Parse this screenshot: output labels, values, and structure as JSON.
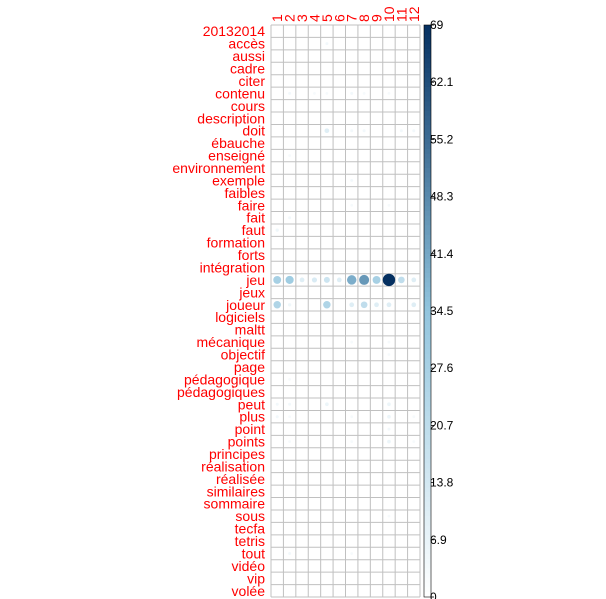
{
  "chart_data": {
    "type": "heatmap",
    "title": "",
    "xlabel": "",
    "ylabel": "",
    "columns": [
      "1",
      "2",
      "3",
      "4",
      "5",
      "6",
      "7",
      "8",
      "9",
      "10",
      "11",
      "12"
    ],
    "rows": [
      "20132014",
      "accès",
      "aussi",
      "cadre",
      "citer",
      "contenu",
      "cours",
      "description",
      "doit",
      "ébauche",
      "enseigné",
      "environnement",
      "exemple",
      "faibles",
      "faire",
      "fait",
      "faut",
      "formation",
      "forts",
      "intégration",
      "jeu",
      "jeux",
      "joueur",
      "logiciels",
      "maltt",
      "mécanique",
      "objectif",
      "page",
      "pédagogique",
      "pédagogiques",
      "peut",
      "plus",
      "point",
      "points",
      "principes",
      "réalisation",
      "réalisée",
      "similaires",
      "sommaire",
      "sous",
      "tecfa",
      "tetris",
      "tout",
      "vidéo",
      "vip",
      "volée"
    ],
    "cells": [
      {
        "row": "accès",
        "col": "5",
        "value": 4
      },
      {
        "row": "contenu",
        "col": "2",
        "value": 4
      },
      {
        "row": "contenu",
        "col": "4",
        "value": 3
      },
      {
        "row": "contenu",
        "col": "5",
        "value": 3
      },
      {
        "row": "contenu",
        "col": "7",
        "value": 4
      },
      {
        "row": "contenu",
        "col": "8",
        "value": 3
      },
      {
        "row": "contenu",
        "col": "10",
        "value": 3
      },
      {
        "row": "doit",
        "col": "5",
        "value": 10
      },
      {
        "row": "doit",
        "col": "7",
        "value": 4
      },
      {
        "row": "doit",
        "col": "8",
        "value": 4
      },
      {
        "row": "doit",
        "col": "11",
        "value": 4
      },
      {
        "row": "doit",
        "col": "12",
        "value": 4
      },
      {
        "row": "enseigné",
        "col": "2",
        "value": 3
      },
      {
        "row": "exemple",
        "col": "7",
        "value": 4
      },
      {
        "row": "faire",
        "col": "7",
        "value": 3
      },
      {
        "row": "faire",
        "col": "10",
        "value": 3
      },
      {
        "row": "fait",
        "col": "2",
        "value": 4
      },
      {
        "row": "faut",
        "col": "1",
        "value": 5
      },
      {
        "row": "jeu",
        "col": "1",
        "value": 28
      },
      {
        "row": "jeu",
        "col": "2",
        "value": 30
      },
      {
        "row": "jeu",
        "col": "3",
        "value": 10
      },
      {
        "row": "jeu",
        "col": "4",
        "value": 12
      },
      {
        "row": "jeu",
        "col": "5",
        "value": 16
      },
      {
        "row": "jeu",
        "col": "6",
        "value": 10
      },
      {
        "row": "jeu",
        "col": "7",
        "value": 40
      },
      {
        "row": "jeu",
        "col": "8",
        "value": 45
      },
      {
        "row": "jeu",
        "col": "9",
        "value": 28
      },
      {
        "row": "jeu",
        "col": "10",
        "value": 69
      },
      {
        "row": "jeu",
        "col": "11",
        "value": 20
      },
      {
        "row": "jeu",
        "col": "12",
        "value": 10
      },
      {
        "row": "joueur",
        "col": "1",
        "value": 25
      },
      {
        "row": "joueur",
        "col": "2",
        "value": 5
      },
      {
        "row": "joueur",
        "col": "5",
        "value": 25
      },
      {
        "row": "joueur",
        "col": "7",
        "value": 10
      },
      {
        "row": "joueur",
        "col": "8",
        "value": 20
      },
      {
        "row": "joueur",
        "col": "9",
        "value": 10
      },
      {
        "row": "joueur",
        "col": "10",
        "value": 10
      },
      {
        "row": "joueur",
        "col": "12",
        "value": 10
      },
      {
        "row": "mécanique",
        "col": "7",
        "value": 3
      },
      {
        "row": "mécanique",
        "col": "10",
        "value": 3
      },
      {
        "row": "objectif",
        "col": "10",
        "value": 3
      },
      {
        "row": "pédagogique",
        "col": "2",
        "value": 3
      },
      {
        "row": "peut",
        "col": "1",
        "value": 4
      },
      {
        "row": "peut",
        "col": "2",
        "value": 4
      },
      {
        "row": "peut",
        "col": "5",
        "value": 6
      },
      {
        "row": "peut",
        "col": "10",
        "value": 6
      },
      {
        "row": "plus",
        "col": "1",
        "value": 4
      },
      {
        "row": "plus",
        "col": "2",
        "value": 3
      },
      {
        "row": "plus",
        "col": "7",
        "value": 3
      },
      {
        "row": "plus",
        "col": "10",
        "value": 6
      },
      {
        "row": "plus",
        "col": "12",
        "value": 3
      },
      {
        "row": "point",
        "col": "10",
        "value": 4
      },
      {
        "row": "points",
        "col": "2",
        "value": 3
      },
      {
        "row": "points",
        "col": "7",
        "value": 3
      },
      {
        "row": "points",
        "col": "10",
        "value": 6
      },
      {
        "row": "points",
        "col": "12",
        "value": 3
      },
      {
        "row": "sous",
        "col": "10",
        "value": 3
      },
      {
        "row": "tout",
        "col": "2",
        "value": 4
      },
      {
        "row": "tout",
        "col": "7",
        "value": 3
      }
    ],
    "color_scale": {
      "min": 0,
      "max": 69,
      "ticks": [
        "0",
        "6.9",
        "13.8",
        "20.7",
        "27.6",
        "34.5",
        "41.4",
        "48.3",
        "55.2",
        "62.1",
        "69"
      ],
      "low_color": "#ffffff",
      "high_color": "#053061"
    },
    "label_color": "#ff0000",
    "grid_color": "#c0c0c0"
  }
}
